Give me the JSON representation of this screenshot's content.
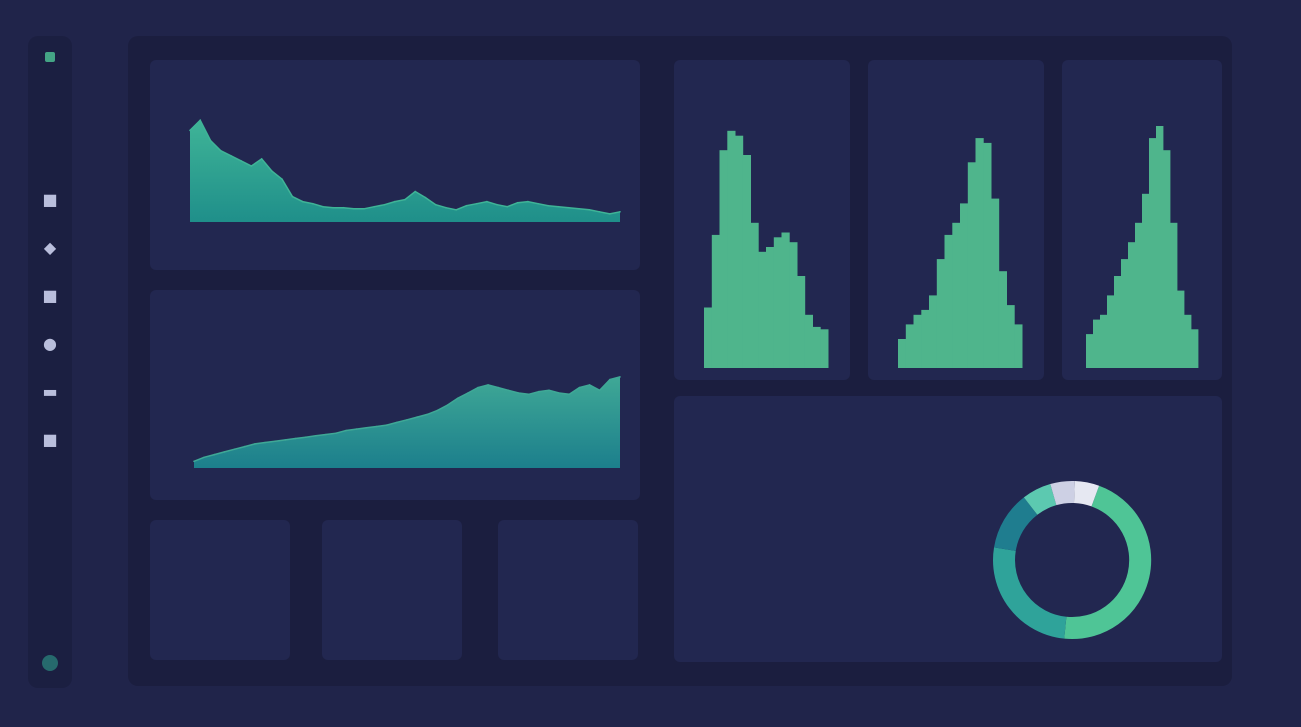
{
  "sidebar": {
    "logo_icon": "logo-icon",
    "items": [
      {
        "name": "sidebar-item-home",
        "icon": "home-icon",
        "glyph": "■"
      },
      {
        "name": "sidebar-item-analytics",
        "icon": "chart-icon",
        "glyph": "◆"
      },
      {
        "name": "sidebar-item-reports",
        "icon": "document-icon",
        "glyph": "■"
      },
      {
        "name": "sidebar-item-users",
        "icon": "user-icon",
        "glyph": "●"
      },
      {
        "name": "sidebar-item-messages",
        "icon": "message-icon",
        "glyph": "▬"
      },
      {
        "name": "sidebar-item-settings",
        "icon": "gear-icon",
        "glyph": "■"
      }
    ],
    "bottom_icon": "profile-icon"
  },
  "colors": {
    "accent": "#4fc596",
    "accent_dark": "#2f9d96",
    "teal": "#1f7d8f",
    "light": "#d9dbe9",
    "panel": "#222750",
    "background": "#1b1e3f"
  },
  "cards": {
    "stats": [
      {
        "value": "",
        "label": ""
      },
      {
        "value": "",
        "label": ""
      },
      {
        "value": "",
        "label": ""
      }
    ]
  },
  "chart_data": [
    {
      "id": "area-top",
      "type": "area",
      "title": "",
      "x": [
        0,
        1,
        2,
        3,
        4,
        5,
        6,
        7,
        8,
        9,
        10,
        11,
        12,
        13,
        14,
        15,
        16,
        17,
        18,
        19,
        20,
        21,
        22,
        23,
        24,
        25,
        26,
        27,
        28,
        29,
        30,
        31,
        32,
        33,
        34,
        35,
        36,
        37,
        38,
        39,
        40,
        41,
        42
      ],
      "values": [
        0.9,
        1.0,
        0.8,
        0.7,
        0.65,
        0.6,
        0.55,
        0.62,
        0.5,
        0.42,
        0.25,
        0.2,
        0.18,
        0.15,
        0.14,
        0.14,
        0.13,
        0.13,
        0.15,
        0.17,
        0.2,
        0.22,
        0.3,
        0.24,
        0.17,
        0.14,
        0.12,
        0.16,
        0.18,
        0.2,
        0.17,
        0.15,
        0.19,
        0.2,
        0.18,
        0.16,
        0.15,
        0.14,
        0.13,
        0.12,
        0.1,
        0.08,
        0.1
      ],
      "ylim": [
        0,
        1.1
      ],
      "grid": false
    },
    {
      "id": "area-middle",
      "type": "area",
      "title": "",
      "x": [
        0,
        1,
        2,
        3,
        4,
        5,
        6,
        7,
        8,
        9,
        10,
        11,
        12,
        13,
        14,
        15,
        16,
        17,
        18,
        19,
        20,
        21,
        22,
        23,
        24,
        25,
        26,
        27,
        28,
        29,
        30,
        31,
        32,
        33,
        34,
        35,
        36,
        37,
        38,
        39,
        40,
        41,
        42
      ],
      "values": [
        0.05,
        0.08,
        0.1,
        0.12,
        0.14,
        0.16,
        0.18,
        0.19,
        0.2,
        0.21,
        0.22,
        0.23,
        0.24,
        0.25,
        0.26,
        0.28,
        0.29,
        0.3,
        0.31,
        0.32,
        0.34,
        0.36,
        0.38,
        0.4,
        0.43,
        0.47,
        0.52,
        0.56,
        0.6,
        0.62,
        0.6,
        0.58,
        0.56,
        0.55,
        0.57,
        0.58,
        0.56,
        0.55,
        0.6,
        0.62,
        0.58,
        0.66,
        0.68
      ],
      "ylim": [
        0,
        1.0
      ],
      "grid": false
    },
    {
      "id": "hist-1",
      "type": "bar",
      "title": "",
      "values": [
        0.25,
        0.55,
        0.9,
        0.98,
        0.96,
        0.88,
        0.6,
        0.48,
        0.5,
        0.54,
        0.56,
        0.52,
        0.38,
        0.22,
        0.17,
        0.16
      ],
      "ylim": [
        0,
        1.0
      ]
    },
    {
      "id": "hist-2",
      "type": "bar",
      "title": "",
      "values": [
        0.12,
        0.18,
        0.22,
        0.24,
        0.3,
        0.45,
        0.55,
        0.6,
        0.68,
        0.85,
        0.95,
        0.93,
        0.7,
        0.4,
        0.26,
        0.18
      ],
      "ylim": [
        0,
        1.0
      ]
    },
    {
      "id": "hist-3",
      "type": "bar",
      "title": "",
      "values": [
        0.14,
        0.2,
        0.22,
        0.3,
        0.38,
        0.45,
        0.52,
        0.6,
        0.72,
        0.95,
        1.0,
        0.9,
        0.6,
        0.32,
        0.22,
        0.16
      ],
      "ylim": [
        0,
        1.0
      ]
    },
    {
      "id": "donut",
      "type": "pie",
      "title": "",
      "values": [
        0.46,
        0.26,
        0.12,
        0.06,
        0.05,
        0.05
      ],
      "colors": [
        "#4fc596",
        "#2fa39a",
        "#1f7d8f",
        "#5cc9b0",
        "#cdd0e4",
        "#e6e8f2"
      ]
    }
  ]
}
